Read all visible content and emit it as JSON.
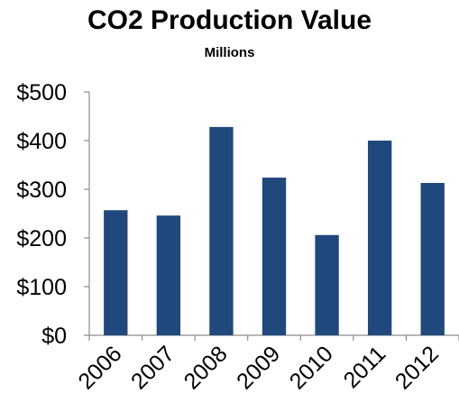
{
  "chart_data": {
    "type": "bar",
    "title": "CO2 Production Value",
    "subtitle": "Millions",
    "xlabel": "",
    "ylabel": "",
    "categories": [
      "2006",
      "2007",
      "2008",
      "2009",
      "2010",
      "2011",
      "2012"
    ],
    "values": [
      257,
      246,
      428,
      324,
      206,
      400,
      313
    ],
    "ylim": [
      0,
      500
    ],
    "yticks": [
      0,
      100,
      200,
      300,
      400,
      500
    ],
    "ytick_labels": [
      "$0",
      "$100",
      "$200",
      "$300",
      "$400",
      "$500"
    ],
    "grid": false,
    "legend": "none",
    "bar_color": "#1f497d"
  }
}
